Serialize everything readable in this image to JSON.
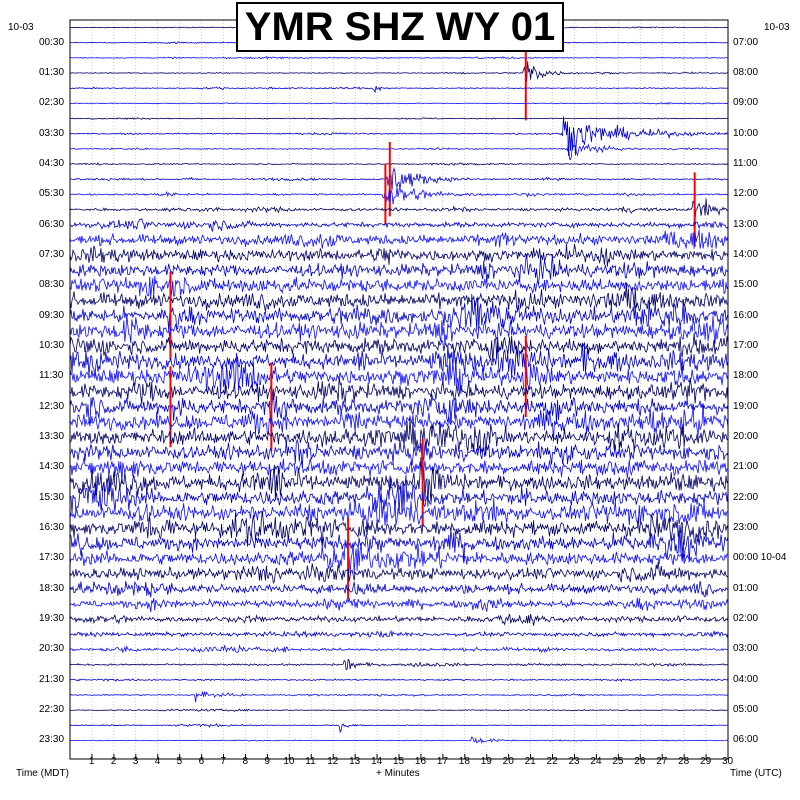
{
  "chart_data": {
    "type": "helicorder",
    "title": "YMR SHZ WY 01",
    "date_left": "10-03",
    "date_right": "10-03",
    "xlabel_left": "Time (MDT)",
    "xlabel_center": "+ Minutes",
    "xlabel_right": "Time (UTC)",
    "x_ticks": [
      "1",
      "2",
      "3",
      "4",
      "5",
      "6",
      "7",
      "8",
      "9",
      "10",
      "11",
      "12",
      "13",
      "14",
      "15",
      "16",
      "17",
      "18",
      "19",
      "20",
      "21",
      "22",
      "23",
      "24",
      "25",
      "26",
      "27",
      "28",
      "29",
      "30"
    ],
    "xlim": [
      0,
      30
    ],
    "minutes_per_line": 30,
    "line_count": 48,
    "line_colors": [
      "#000066",
      "#0000cc",
      "#1010ff"
    ],
    "clip_color": "#ff0000",
    "left_times": [
      "00:30",
      "01:30",
      "02:30",
      "03:30",
      "04:30",
      "05:30",
      "06:30",
      "07:30",
      "08:30",
      "09:30",
      "10:30",
      "11:30",
      "12:30",
      "13:30",
      "14:30",
      "15:30",
      "16:30",
      "17:30",
      "18:30",
      "19:30",
      "20:30",
      "21:30",
      "22:30",
      "23:30"
    ],
    "right_times": [
      "07:00",
      "08:00",
      "09:00",
      "10:00",
      "11:00",
      "12:00",
      "13:00",
      "14:00",
      "15:00",
      "16:00",
      "17:00",
      "18:00",
      "19:00",
      "20:00",
      "21:00",
      "22:00",
      "23:00",
      "00:00 10-04",
      "01:00",
      "02:00",
      "03:00",
      "04:00",
      "05:00",
      "06:00"
    ],
    "events": [
      {
        "line": 3,
        "minute": 20.7,
        "amplitude": 2.8,
        "duration": 1.2,
        "clipped": true
      },
      {
        "line": 4,
        "minute": 13.8,
        "amplitude": 0.6,
        "duration": 0.6,
        "clipped": false
      },
      {
        "line": 7,
        "minute": 22.5,
        "amplitude": 2.4,
        "duration": 4.5,
        "clipped": false
      },
      {
        "line": 8,
        "minute": 22.7,
        "amplitude": 1.5,
        "duration": 2.0,
        "clipped": false
      },
      {
        "line": 10,
        "minute": 14.5,
        "amplitude": 2.2,
        "duration": 2.5,
        "clipped": true
      },
      {
        "line": 11,
        "minute": 14.3,
        "amplitude": 1.8,
        "duration": 3.0,
        "clipped": true
      },
      {
        "line": 12,
        "minute": 28.4,
        "amplitude": 2.2,
        "duration": 1.5,
        "clipped": true
      },
      {
        "line": 19,
        "minute": 4.5,
        "amplitude": 2.6,
        "duration": 0.8,
        "clipped": true
      },
      {
        "line": 23,
        "minute": 20.7,
        "amplitude": 2.4,
        "duration": 1.0,
        "clipped": true
      },
      {
        "line": 25,
        "minute": 4.5,
        "amplitude": 2.4,
        "duration": 0.8,
        "clipped": true
      },
      {
        "line": 25,
        "minute": 9.1,
        "amplitude": 2.6,
        "duration": 1.0,
        "clipped": true
      },
      {
        "line": 30,
        "minute": 16.0,
        "amplitude": 2.6,
        "duration": 1.0,
        "clipped": true
      },
      {
        "line": 35,
        "minute": 12.6,
        "amplitude": 2.4,
        "duration": 1.2,
        "clipped": true
      },
      {
        "line": 37,
        "minute": 12.6,
        "amplitude": 1.4,
        "duration": 1.0,
        "clipped": false
      },
      {
        "line": 42,
        "minute": 12.5,
        "amplitude": 0.9,
        "duration": 1.2,
        "clipped": false
      },
      {
        "line": 44,
        "minute": 5.7,
        "amplitude": 0.8,
        "duration": 1.2,
        "clipped": false
      },
      {
        "line": 46,
        "minute": 12.3,
        "amplitude": 1.0,
        "duration": 0.5,
        "clipped": false
      },
      {
        "line": 47,
        "minute": 18.3,
        "amplitude": 0.6,
        "duration": 1.5,
        "clipped": false
      }
    ],
    "noise_level_by_line": [
      0.04,
      0.04,
      0.05,
      0.05,
      0.05,
      0.05,
      0.05,
      0.06,
      0.06,
      0.07,
      0.08,
      0.1,
      0.16,
      0.28,
      0.55,
      0.65,
      0.7,
      0.75,
      0.8,
      0.85,
      0.85,
      0.85,
      0.85,
      0.85,
      0.85,
      0.85,
      0.85,
      0.85,
      0.85,
      0.85,
      0.85,
      0.85,
      0.85,
      0.85,
      0.8,
      0.72,
      0.62,
      0.5,
      0.4,
      0.3,
      0.22,
      0.15,
      0.1,
      0.08,
      0.07,
      0.06,
      0.05,
      0.05
    ],
    "grid": true
  }
}
